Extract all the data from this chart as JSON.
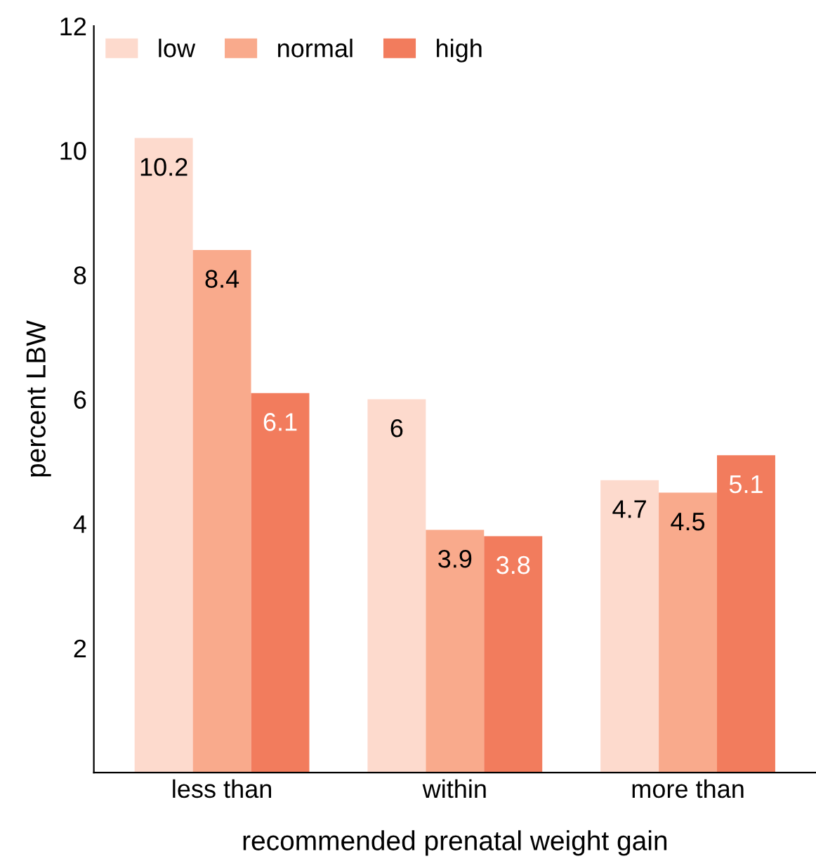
{
  "chart_data": {
    "type": "bar",
    "xlabel": "recommended prenatal weight gain",
    "ylabel": "percent LBW",
    "categories": [
      "less than",
      "within",
      "more than"
    ],
    "series": [
      {
        "name": "low",
        "color": "#fddacd",
        "values": [
          10.2,
          6,
          4.7
        ]
      },
      {
        "name": "normal",
        "color": "#f9aa8c",
        "values": [
          8.4,
          3.9,
          4.5
        ]
      },
      {
        "name": "high",
        "color": "#f27c5d",
        "values": [
          6.1,
          3.8,
          5.1
        ]
      }
    ],
    "ylim": [
      0,
      12
    ],
    "yticks": [
      2,
      4,
      6,
      8,
      10,
      12
    ],
    "grid": false,
    "legend": "top left",
    "data_labels": true
  }
}
